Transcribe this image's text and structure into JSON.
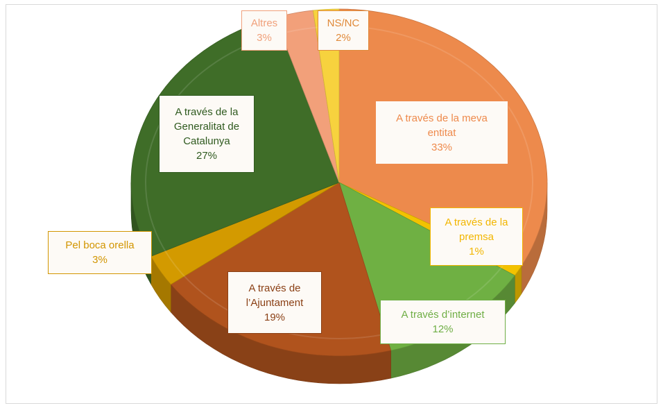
{
  "chart_data": {
    "type": "pie",
    "slices": [
      {
        "name": "A través de la meva entitat",
        "value": 33,
        "label": "33%",
        "color": "#ed8a4c",
        "labelColor": "#ee8a4c",
        "lines": [
          "A través de la meva",
          "entitat"
        ]
      },
      {
        "name": "A través de la premsa",
        "value": 1,
        "label": "1%",
        "color": "#f2c200",
        "labelColor": "#f2b600",
        "lines": [
          "A través de la",
          "premsa"
        ]
      },
      {
        "name": "A través d'internet",
        "value": 12,
        "label": "12%",
        "color": "#6fb043",
        "labelColor": "#6fae45",
        "lines": [
          "A través d’internet"
        ]
      },
      {
        "name": "A través de l'Ajuntament",
        "value": 19,
        "label": "19%",
        "color": "#b0531d",
        "labelColor": "#8a3f14",
        "lines": [
          "A través de",
          "l’Ajuntament"
        ]
      },
      {
        "name": "Pel boca orella",
        "value": 3,
        "label": "3%",
        "color": "#d39a00",
        "labelColor": "#d29500",
        "lines": [
          "Pel boca orella"
        ]
      },
      {
        "name": "A través de la Generalitat de Catalunya",
        "value": 27,
        "label": "27%",
        "color": "#3f6d28",
        "labelColor": "#2f5a1f",
        "lines": [
          "A través de la",
          "Generalitat de",
          "Catalunya"
        ]
      },
      {
        "name": "Altres",
        "value": 3,
        "label": "3%",
        "color": "#f2a07a",
        "labelColor": "#f0a07a",
        "lines": [
          "Altres"
        ]
      },
      {
        "name": "NS/NC",
        "value": 2,
        "label": "2%",
        "color": "#f7d23e",
        "labelColor": "#e08a3a",
        "lines": [
          "NS/NC"
        ]
      }
    ]
  }
}
